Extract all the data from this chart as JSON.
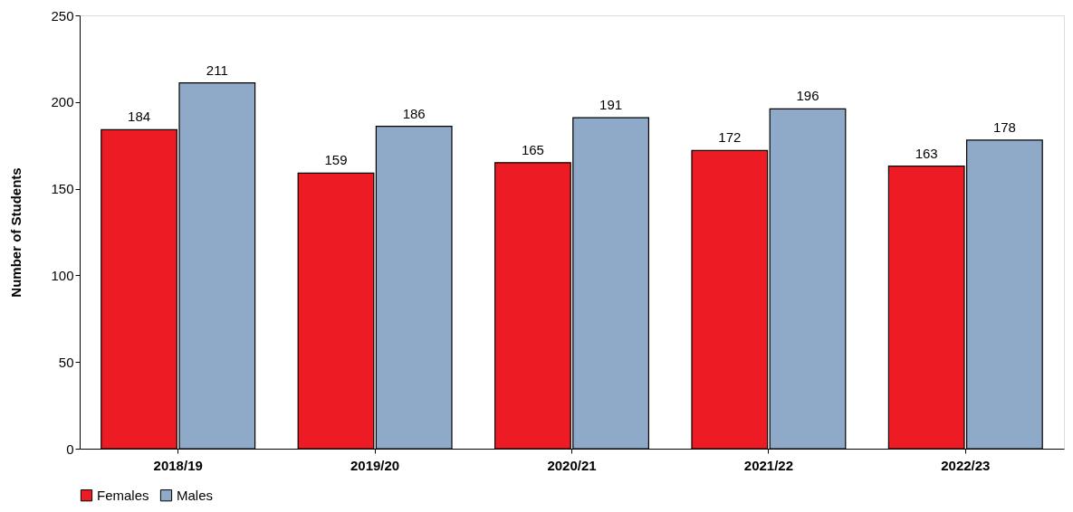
{
  "chart_data": {
    "type": "bar",
    "ylabel": "Number of Students",
    "categories": [
      "2018/19",
      "2019/20",
      "2020/21",
      "2021/22",
      "2022/23"
    ],
    "series": [
      {
        "name": "Females",
        "color": "#ed1c24",
        "values": [
          184,
          159,
          165,
          172,
          163
        ]
      },
      {
        "name": "Males",
        "color": "#8eaac8",
        "values": [
          211,
          186,
          191,
          196,
          178
        ]
      }
    ],
    "ylim": [
      0,
      250
    ],
    "yticks": [
      0,
      50,
      100,
      150,
      200,
      250
    ],
    "grid": false,
    "legend": "bottom",
    "data_labels": true
  }
}
